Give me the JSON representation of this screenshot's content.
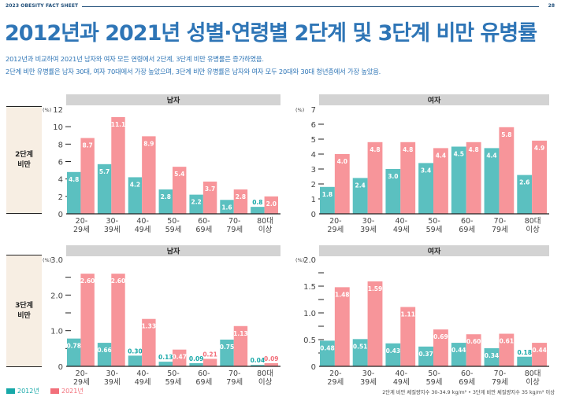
{
  "header": {
    "publication": "2023 OBESITY FACT SHEET",
    "page_number": "28"
  },
  "title": "2012년과 2021년 성별·연령별 2단계 및 3단계 비만 유병률",
  "description": [
    "2012년과 비교하여 2021년 남자와 여자 모든 연령에서 2단계, 3단계 비만 유병률은 증가하였음.",
    "2단계 비만 유병률은 남자 30대, 여자 70대에서 가장 높았으며, 3단계 비만 유병률은 남자와 여자 모두 20대와 30대 청년층에서 가장 높았음."
  ],
  "row_labels": [
    "2단계\n비만",
    "3단계\n비만"
  ],
  "colors": {
    "2012": "#5bc0c0",
    "2021": "#f7959a",
    "legend_2012": "#17a8a8",
    "legend_2021": "#f26f7a",
    "panel_header": "#d3d3d3"
  },
  "legend": [
    {
      "label": "2012년",
      "key": "2012"
    },
    {
      "label": "2021년",
      "key": "2021"
    }
  ],
  "note": "2단계 비만 체질량지수 30-34.9 kg/m² • 3단계 비만 체질량지수 35 kg/m² 이상",
  "chart_data": [
    {
      "type": "bar",
      "title": "남자",
      "row": "2단계 비만",
      "ylabel": "(%)",
      "categories": [
        [
          "20-",
          "29세"
        ],
        [
          "30-",
          "39세"
        ],
        [
          "40-",
          "49세"
        ],
        [
          "50-",
          "59세"
        ],
        [
          "60-",
          "69세"
        ],
        [
          "70-",
          "79세"
        ],
        [
          "80대",
          "이상"
        ]
      ],
      "ylim": [
        0,
        12
      ],
      "yticks": [
        0,
        2,
        4,
        6,
        8,
        10,
        12
      ],
      "ytick_labels": [
        "0",
        "2",
        "4",
        "6",
        "8",
        "10",
        "12"
      ],
      "series": [
        {
          "name": "2012년",
          "values": [
            4.8,
            5.7,
            4.2,
            2.8,
            2.2,
            1.6,
            0.8
          ],
          "labels": [
            "4.8",
            "5.7",
            "4.2",
            "2.8",
            "2.2",
            "1.6",
            "0.8"
          ]
        },
        {
          "name": "2021년",
          "values": [
            8.7,
            11.1,
            8.9,
            5.4,
            3.7,
            2.8,
            2.0
          ],
          "labels": [
            "8.7",
            "11.1",
            "8.9",
            "5.4",
            "3.7",
            "2.8",
            "2.0"
          ]
        }
      ]
    },
    {
      "type": "bar",
      "title": "여자",
      "row": "2단계 비만",
      "ylabel": "(%)",
      "categories": [
        [
          "20-",
          "29세"
        ],
        [
          "30-",
          "39세"
        ],
        [
          "40-",
          "49세"
        ],
        [
          "50-",
          "59세"
        ],
        [
          "60-",
          "69세"
        ],
        [
          "70-",
          "79세"
        ],
        [
          "80대",
          "이상"
        ]
      ],
      "ylim": [
        0,
        7
      ],
      "yticks": [
        0,
        1,
        2,
        3,
        4,
        5,
        6,
        7
      ],
      "ytick_labels": [
        "0",
        "1",
        "2",
        "3",
        "4",
        "5",
        "6",
        "7"
      ],
      "series": [
        {
          "name": "2012년",
          "values": [
            1.8,
            2.4,
            3.0,
            3.4,
            4.5,
            4.4,
            2.6
          ],
          "labels": [
            "1.8",
            "2.4",
            "3.0",
            "3.4",
            "4.5",
            "4.4",
            "2.6"
          ]
        },
        {
          "name": "2021년",
          "values": [
            4.0,
            4.8,
            4.8,
            4.4,
            4.8,
            5.8,
            4.9
          ],
          "labels": [
            "4.0",
            "4.8",
            "4.8",
            "4.4",
            "4.8",
            "5.8",
            "4.9"
          ]
        }
      ]
    },
    {
      "type": "bar",
      "title": "남자",
      "row": "3단계 비만",
      "ylabel": "(%)",
      "categories": [
        [
          "20-",
          "29세"
        ],
        [
          "30-",
          "39세"
        ],
        [
          "40-",
          "49세"
        ],
        [
          "50-",
          "59세"
        ],
        [
          "60-",
          "69세"
        ],
        [
          "70-",
          "79세"
        ],
        [
          "80대",
          "이상"
        ]
      ],
      "ylim": [
        0,
        3.0
      ],
      "yticks": [
        0,
        0.5,
        1.0,
        1.5,
        2.0,
        2.5,
        3.0
      ],
      "ytick_labels": [
        "0",
        "",
        "1.0",
        "",
        "2.0",
        "",
        "3.0"
      ],
      "series": [
        {
          "name": "2012년",
          "values": [
            0.78,
            0.66,
            0.3,
            0.13,
            0.09,
            0.75,
            0.04
          ],
          "labels": [
            "0.78",
            "0.66",
            "0.30",
            "0.13",
            "0.09",
            "0.75",
            "0.04"
          ]
        },
        {
          "name": "2021년",
          "values": [
            2.6,
            2.6,
            1.33,
            0.47,
            0.21,
            1.13,
            0.09
          ],
          "labels": [
            "2.60",
            "2.60",
            "1.33",
            "0.47",
            "0.21",
            "1.13",
            "0.09"
          ]
        }
      ]
    },
    {
      "type": "bar",
      "title": "여자",
      "row": "3단계 비만",
      "ylabel": "(%)",
      "categories": [
        [
          "20-",
          "29세"
        ],
        [
          "30-",
          "39세"
        ],
        [
          "40-",
          "49세"
        ],
        [
          "50-",
          "59세"
        ],
        [
          "60-",
          "69세"
        ],
        [
          "70-",
          "79세"
        ],
        [
          "80대",
          "이상"
        ]
      ],
      "ylim": [
        0,
        2.0
      ],
      "yticks": [
        0,
        0.25,
        0.5,
        0.75,
        1.0,
        1.25,
        1.5,
        1.75,
        2.0
      ],
      "ytick_labels": [
        "0",
        "",
        "0.5",
        "",
        "1.0",
        "",
        "1.5",
        "",
        "2.0"
      ],
      "series": [
        {
          "name": "2012년",
          "values": [
            0.48,
            0.51,
            0.43,
            0.37,
            0.44,
            0.34,
            0.18
          ],
          "labels": [
            "0.48",
            "0.51",
            "0.43",
            "0.37",
            "0.44",
            "0.34",
            "0.18"
          ]
        },
        {
          "name": "2021년",
          "values": [
            1.48,
            1.59,
            1.11,
            0.69,
            0.6,
            0.61,
            0.44
          ],
          "labels": [
            "1.48",
            "1.59",
            "1.11",
            "0.69",
            "0.60",
            "0.61",
            "0.44"
          ]
        }
      ]
    }
  ]
}
